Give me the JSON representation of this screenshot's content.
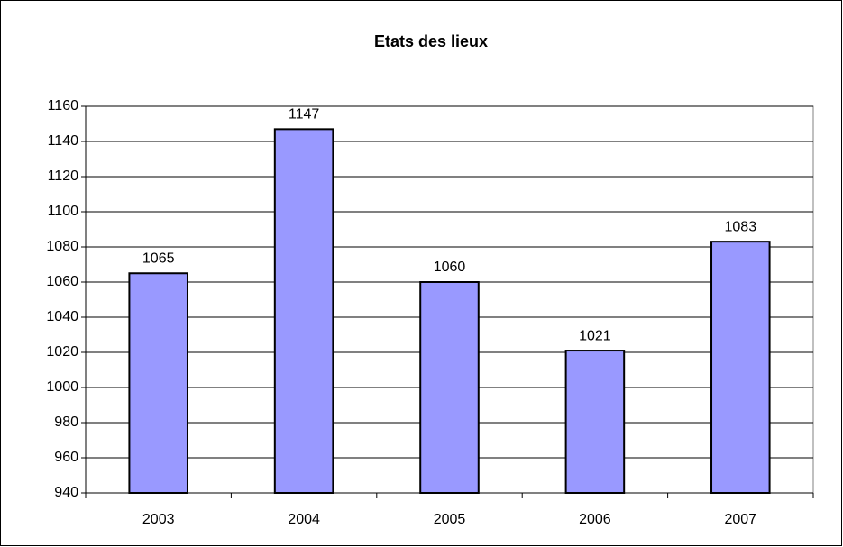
{
  "chart_data": {
    "type": "bar",
    "title": "Etats des lieux",
    "categories": [
      "2003",
      "2004",
      "2005",
      "2006",
      "2007"
    ],
    "values": [
      1065,
      1147,
      1060,
      1021,
      1083
    ],
    "color": "#9999ff",
    "ylim": [
      940,
      1160
    ],
    "yticks": [
      940,
      960,
      980,
      1000,
      1020,
      1040,
      1060,
      1080,
      1100,
      1120,
      1140,
      1160
    ],
    "grid": true
  }
}
